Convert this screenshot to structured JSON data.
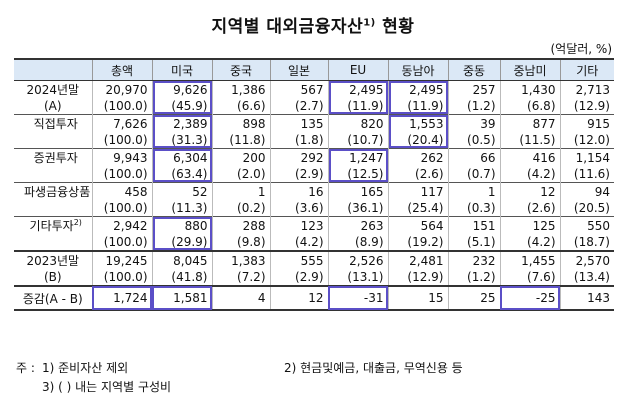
{
  "title": "지역별 대외금융자산",
  "title_sup": "1)",
  "title_suffix": "현황",
  "unit": "(억달러, %)",
  "columns": [
    "총액",
    "미국",
    "중국",
    "일본",
    "EU",
    "동남아",
    "중동",
    "중남미",
    "기타"
  ],
  "rows": [
    {
      "label1": "2024년말",
      "label2": "(A)",
      "v": [
        "20,970",
        "9,626",
        "1,386",
        "567",
        "2,495",
        "2,495",
        "257",
        "1,430",
        "2,713"
      ],
      "p": [
        "(100.0)",
        "(45.9)",
        "(6.6)",
        "(2.7)",
        "(11.9)",
        "(11.9)",
        "(1.2)",
        "(6.8)",
        "(12.9)"
      ]
    },
    {
      "label1": "직접투자",
      "label2": "",
      "v": [
        "7,626",
        "2,389",
        "898",
        "135",
        "820",
        "1,553",
        "39",
        "877",
        "915"
      ],
      "p": [
        "(100.0)",
        "(31.3)",
        "(11.8)",
        "(1.8)",
        "(10.7)",
        "(20.4)",
        "(0.5)",
        "(11.5)",
        "(12.0)"
      ]
    },
    {
      "label1": "증권투자",
      "label2": "",
      "v": [
        "9,943",
        "6,304",
        "200",
        "292",
        "1,247",
        "262",
        "66",
        "416",
        "1,154"
      ],
      "p": [
        "(100.0)",
        "(63.4)",
        "(2.0)",
        "(2.9)",
        "(12.5)",
        "(2.6)",
        "(0.7)",
        "(4.2)",
        "(11.6)"
      ]
    },
    {
      "label1": "파생금융상품",
      "label2": "",
      "v": [
        "458",
        "52",
        "1",
        "16",
        "165",
        "117",
        "1",
        "12",
        "94"
      ],
      "p": [
        "(100.0)",
        "(11.3)",
        "(0.2)",
        "(3.6)",
        "(36.1)",
        "(25.4)",
        "(0.3)",
        "(2.6)",
        "(20.5)"
      ]
    },
    {
      "label1": "기타투자",
      "label1_sup": "2)",
      "label2": "",
      "v": [
        "2,942",
        "880",
        "288",
        "123",
        "263",
        "564",
        "151",
        "125",
        "550"
      ],
      "p": [
        "(100.0)",
        "(29.9)",
        "(9.8)",
        "(4.2)",
        "(8.9)",
        "(19.2)",
        "(5.1)",
        "(4.2)",
        "(18.7)"
      ]
    },
    {
      "label1": "2023년말",
      "label2": "(B)",
      "v": [
        "19,245",
        "8,045",
        "1,383",
        "555",
        "2,526",
        "2,481",
        "232",
        "1,455",
        "2,570"
      ],
      "p": [
        "(100.0)",
        "(41.8)",
        "(7.2)",
        "(2.9)",
        "(13.1)",
        "(12.9)",
        "(1.2)",
        "(7.6)",
        "(13.4)"
      ]
    }
  ],
  "change_row": {
    "label": "증감(A - B)",
    "v": [
      "1,724",
      "1,581",
      "4",
      "12",
      "-31",
      "15",
      "25",
      "-25",
      "143"
    ]
  },
  "notes": {
    "prefix": "주 :",
    "n1": "1) 준비자산 제외",
    "n2": "2) 현금및예금, 대출금, 무역신용 등",
    "n3": "3) (  ) 내는 지역별 구성비"
  }
}
